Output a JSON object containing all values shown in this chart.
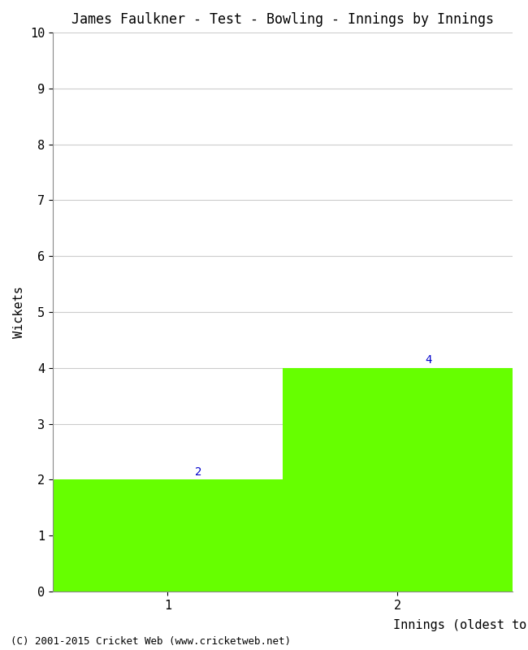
{
  "title": "James Faulkner - Test - Bowling - Innings by Innings",
  "xlabel": "Innings (oldest to newest)",
  "ylabel": "Wickets",
  "categories": [
    "1",
    "2"
  ],
  "values": [
    2,
    4
  ],
  "bar_color": "#66ff00",
  "ylim": [
    0,
    10
  ],
  "yticks": [
    0,
    1,
    2,
    3,
    4,
    5,
    6,
    7,
    8,
    9,
    10
  ],
  "xlim": [
    0,
    2
  ],
  "background_color": "#ffffff",
  "grid_color": "#cccccc",
  "label_fontsize": 11,
  "title_fontsize": 12,
  "tick_fontsize": 11,
  "annotation_fontsize": 10,
  "annotation_color": "#0000cc",
  "footer": "(C) 2001-2015 Cricket Web (www.cricketweb.net)",
  "font_family": "monospace"
}
